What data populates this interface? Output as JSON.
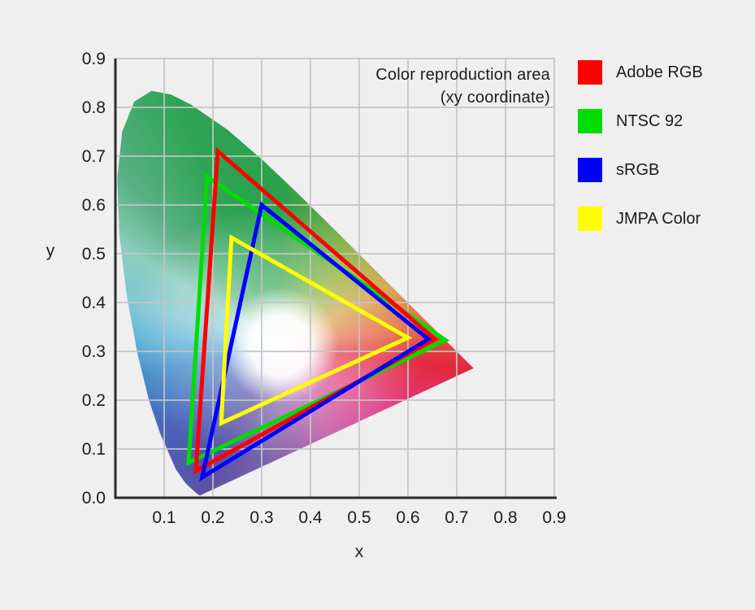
{
  "page": {
    "background_color": "#efefef",
    "text_color": "#1c1c1c"
  },
  "title": {
    "line1": "Color reproduction area",
    "line2": "(xy coordinate)"
  },
  "axes": {
    "x_label": "x",
    "y_label": "y",
    "x_ticks": [
      "0.1",
      "0.2",
      "0.3",
      "0.4",
      "0.5",
      "0.6",
      "0.7",
      "0.8",
      "0.9"
    ],
    "y_ticks": [
      "0.0",
      "0.1",
      "0.2",
      "0.3",
      "0.4",
      "0.5",
      "0.6",
      "0.7",
      "0.8",
      "0.9"
    ]
  },
  "legend": {
    "items": [
      {
        "label": "Adobe RGB",
        "color": "#fe0000"
      },
      {
        "label": "NTSC 92",
        "color": "#00dd00"
      },
      {
        "label": "sRGB",
        "color": "#0000ff"
      },
      {
        "label": "JMPA Color",
        "color": "#ffff00"
      }
    ]
  },
  "chart_data": {
    "type": "line",
    "subtype": "cie-1931-chromaticity-gamut-comparison",
    "title": "Color reproduction area (xy coordinate)",
    "xlabel": "x",
    "ylabel": "y",
    "xlim": [
      0,
      0.9
    ],
    "ylim": [
      0,
      0.9
    ],
    "tick_step": 0.1,
    "grid": true,
    "grid_color": "#c5c5c5",
    "axis_color": "#2b2b2b",
    "series": [
      {
        "name": "Adobe RGB",
        "color": "#fe0000",
        "z": 2,
        "stroke_width": 5,
        "vertices": [
          [
            0.21,
            0.71
          ],
          [
            0.655,
            0.325
          ],
          [
            0.165,
            0.055
          ]
        ]
      },
      {
        "name": "NTSC 92",
        "color": "#00dd00",
        "z": 1,
        "stroke_width": 5,
        "vertices": [
          [
            0.188,
            0.658
          ],
          [
            0.677,
            0.323
          ],
          [
            0.15,
            0.072
          ]
        ]
      },
      {
        "name": "sRGB",
        "color": "#0000ff",
        "z": 3,
        "stroke_width": 5,
        "vertices": [
          [
            0.3,
            0.6
          ],
          [
            0.642,
            0.325
          ],
          [
            0.178,
            0.042
          ]
        ]
      },
      {
        "name": "JMPA Color",
        "color": "#ffff00",
        "z": 4,
        "stroke_width": 5,
        "vertices": [
          [
            0.238,
            0.533
          ],
          [
            0.6,
            0.328
          ],
          [
            0.217,
            0.153
          ]
        ]
      }
    ],
    "background_gamut": {
      "name": "CIE 1931 spectral locus",
      "white_center": [
        0.338,
        0.312
      ],
      "white_glow_color": "#ffffff",
      "conic_stops": [
        [
          0,
          "#2ba04a"
        ],
        [
          40,
          "#8fae32"
        ],
        [
          62,
          "#cf9e3c"
        ],
        [
          82,
          "#e4663f"
        ],
        [
          97,
          "#e2283e"
        ],
        [
          121,
          "#e23f86"
        ],
        [
          151,
          "#c45ca6"
        ],
        [
          186,
          "#7d64ac"
        ],
        [
          208,
          "#5a52a4"
        ],
        [
          232,
          "#4a62b8"
        ],
        [
          258,
          "#3f88c8"
        ],
        [
          272,
          "#58afd6"
        ],
        [
          285,
          "#7fc6d6"
        ],
        [
          302,
          "#8ccdbd"
        ],
        [
          317,
          "#58b184"
        ],
        [
          337,
          "#2ea455"
        ],
        [
          360,
          "#2ba04a"
        ]
      ],
      "spectral_locus": [
        [
          0.1741,
          0.005
        ],
        [
          0.1714,
          0.0051
        ],
        [
          0.1644,
          0.0109
        ],
        [
          0.144,
          0.0297
        ],
        [
          0.1241,
          0.0578
        ],
        [
          0.0913,
          0.1327
        ],
        [
          0.0687,
          0.2007
        ],
        [
          0.0454,
          0.295
        ],
        [
          0.0235,
          0.4127
        ],
        [
          0.0082,
          0.5384
        ],
        [
          0.0039,
          0.6548
        ],
        [
          0.0139,
          0.7502
        ],
        [
          0.0389,
          0.812
        ],
        [
          0.0743,
          0.8338
        ],
        [
          0.1142,
          0.8262
        ],
        [
          0.1547,
          0.8059
        ],
        [
          0.2296,
          0.7543
        ],
        [
          0.3016,
          0.6923
        ],
        [
          0.3731,
          0.6245
        ],
        [
          0.4441,
          0.5547
        ],
        [
          0.5125,
          0.4866
        ],
        [
          0.5752,
          0.4242
        ],
        [
          0.627,
          0.3725
        ],
        [
          0.6658,
          0.334
        ],
        [
          0.6915,
          0.3083
        ],
        [
          0.719,
          0.2809
        ],
        [
          0.7347,
          0.2653
        ]
      ]
    }
  }
}
